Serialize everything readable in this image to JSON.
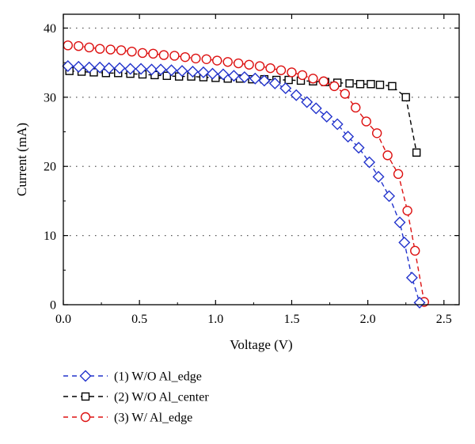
{
  "chart_data": {
    "type": "line",
    "xlabel": "Voltage (V)",
    "ylabel": "Current (mA)",
    "xlim": [
      0.0,
      2.6
    ],
    "ylim": [
      0,
      42
    ],
    "xticks": [
      "0.0",
      "0.5",
      "1.0",
      "1.5",
      "2.0",
      "2.5"
    ],
    "yticks": [
      "0",
      "10",
      "20",
      "30",
      "40"
    ],
    "grid": "horizontal-dotted",
    "legend_position": "bottom-left-below-plot",
    "series": [
      {
        "name": "(1) W/O Al_edge",
        "color": "#2233cc",
        "marker": "diamond",
        "line_style": "dashed",
        "x": [
          0.03,
          0.1,
          0.17,
          0.24,
          0.3,
          0.37,
          0.44,
          0.51,
          0.58,
          0.64,
          0.71,
          0.78,
          0.85,
          0.92,
          0.98,
          1.05,
          1.12,
          1.19,
          1.26,
          1.32,
          1.39,
          1.46,
          1.53,
          1.6,
          1.66,
          1.73,
          1.8,
          1.87,
          1.94,
          2.01,
          2.07,
          2.14,
          2.21,
          2.24,
          2.29,
          2.34
        ],
        "y": [
          34.5,
          34.4,
          34.3,
          34.3,
          34.2,
          34.2,
          34.1,
          34.1,
          34.0,
          34.0,
          33.9,
          33.8,
          33.7,
          33.6,
          33.4,
          33.3,
          33.1,
          32.9,
          32.7,
          32.4,
          32.0,
          31.3,
          30.3,
          29.3,
          28.4,
          27.2,
          26.1,
          24.3,
          22.7,
          20.6,
          18.5,
          15.7,
          11.9,
          9.0,
          3.9,
          0.3
        ]
      },
      {
        "name": "(2) W/O Al_center",
        "color": "#000000",
        "marker": "square",
        "line_style": "dashed",
        "x": [
          0.04,
          0.12,
          0.2,
          0.28,
          0.36,
          0.44,
          0.52,
          0.6,
          0.68,
          0.76,
          0.84,
          0.92,
          1.0,
          1.08,
          1.16,
          1.24,
          1.32,
          1.4,
          1.48,
          1.56,
          1.64,
          1.72,
          1.8,
          1.88,
          1.95,
          2.02,
          2.08,
          2.16,
          2.25,
          2.32
        ],
        "y": [
          33.8,
          33.7,
          33.6,
          33.5,
          33.5,
          33.4,
          33.3,
          33.2,
          33.1,
          33.0,
          33.0,
          32.9,
          32.8,
          32.7,
          32.7,
          32.6,
          32.6,
          32.5,
          32.5,
          32.4,
          32.3,
          32.2,
          32.1,
          32.0,
          31.9,
          31.9,
          31.8,
          31.6,
          30.0,
          22.0
        ]
      },
      {
        "name": "(3) W/ Al_edge",
        "color": "#dd1111",
        "marker": "circle",
        "line_style": "dashed",
        "x": [
          0.03,
          0.1,
          0.17,
          0.24,
          0.31,
          0.38,
          0.45,
          0.52,
          0.59,
          0.66,
          0.73,
          0.8,
          0.87,
          0.94,
          1.01,
          1.08,
          1.15,
          1.22,
          1.29,
          1.36,
          1.43,
          1.5,
          1.57,
          1.64,
          1.71,
          1.78,
          1.85,
          1.92,
          1.99,
          2.06,
          2.13,
          2.2,
          2.26,
          2.31,
          2.37
        ],
        "y": [
          37.5,
          37.4,
          37.2,
          37.0,
          36.9,
          36.8,
          36.6,
          36.4,
          36.3,
          36.1,
          36.0,
          35.8,
          35.6,
          35.5,
          35.3,
          35.1,
          34.9,
          34.7,
          34.5,
          34.2,
          33.9,
          33.6,
          33.2,
          32.7,
          32.3,
          31.6,
          30.5,
          28.5,
          26.5,
          24.8,
          21.6,
          18.9,
          13.6,
          7.8,
          0.4
        ]
      }
    ]
  }
}
